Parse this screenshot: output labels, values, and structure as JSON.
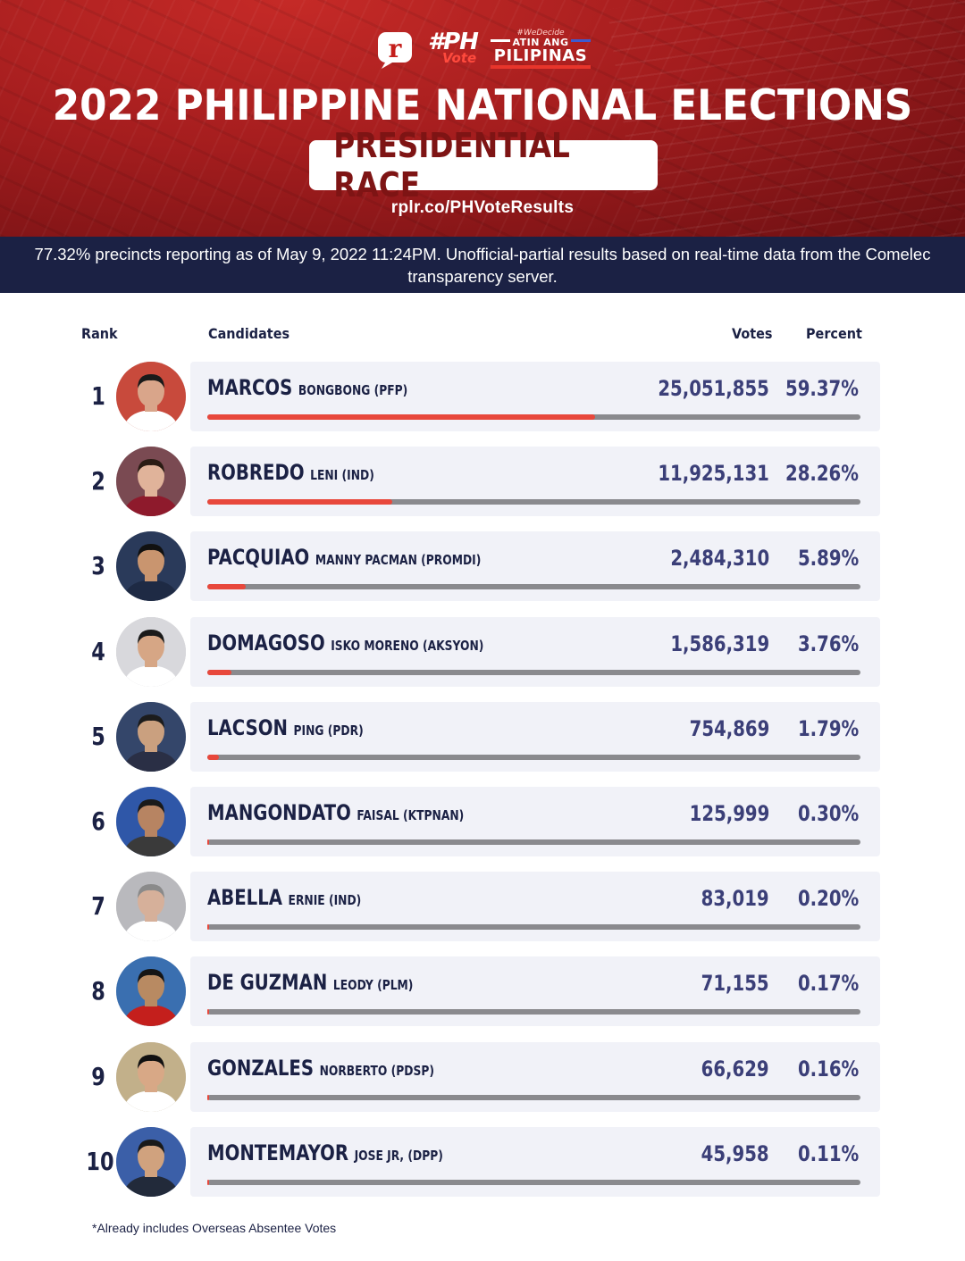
{
  "header": {
    "logo_hashtag": "#PH",
    "logo_vote": "Vote",
    "logo_wedecide": "#WeDecide",
    "logo_atin": "ATIN ANG",
    "logo_pilipinas": "PILIPINAS",
    "title": "2022 PHILIPPINE NATIONAL ELECTIONS",
    "subtitle": "PRESIDENTIAL RACE",
    "url": "rplr.co/PHVoteResults",
    "notice": "77.32% precincts reporting as of May 9, 2022 11:24PM. Unofficial-partial results based on real-time data from the Comelec transparency server."
  },
  "colors": {
    "header_red": "#a41d1e",
    "navy": "#1b2144",
    "bar_fill": "#e8483c",
    "bar_track": "#8a8a8e",
    "value_text": "#3b3f78",
    "row_bg": "#f1f2f8"
  },
  "columns": {
    "rank": "Rank",
    "candidates": "Candidates",
    "votes": "Votes",
    "percent": "Percent"
  },
  "chart_data": {
    "type": "bar",
    "orientation": "horizontal",
    "title": "PRESIDENTIAL RACE",
    "categories": [
      "MARCOS",
      "ROBREDO",
      "PACQUIAO",
      "DOMAGOSO",
      "LACSON",
      "MANGONDATO",
      "ABELLA",
      "DE GUZMAN",
      "GONZALES",
      "MONTEMAYOR"
    ],
    "xlim": [
      0,
      100
    ],
    "rows": [
      {
        "rank": "1",
        "last": "MARCOS",
        "rest": "BONGBONG (PFP)",
        "votes": "25,051,855",
        "percent_label": "59.37%",
        "percent": 59.37
      },
      {
        "rank": "2",
        "last": "ROBREDO",
        "rest": "LENI (IND)",
        "votes": "11,925,131",
        "percent_label": "28.26%",
        "percent": 28.26
      },
      {
        "rank": "3",
        "last": "PACQUIAO",
        "rest": "MANNY PACMAN (PROMDI)",
        "votes": "2,484,310",
        "percent_label": "5.89%",
        "percent": 5.89
      },
      {
        "rank": "4",
        "last": "DOMAGOSO",
        "rest": "ISKO MORENO (AKSYON)",
        "votes": "1,586,319",
        "percent_label": "3.76%",
        "percent": 3.76
      },
      {
        "rank": "5",
        "last": "LACSON",
        "rest": "PING (PDR)",
        "votes": "754,869",
        "percent_label": "1.79%",
        "percent": 1.79
      },
      {
        "rank": "6",
        "last": "MANGONDATO",
        "rest": "FAISAL (KTPNAN)",
        "votes": "125,999",
        "percent_label": "0.30%",
        "percent": 0.3
      },
      {
        "rank": "7",
        "last": "ABELLA",
        "rest": "ERNIE (IND)",
        "votes": "83,019",
        "percent_label": "0.20%",
        "percent": 0.2
      },
      {
        "rank": "8",
        "last": "DE GUZMAN",
        "rest": "LEODY (PLM)",
        "votes": "71,155",
        "percent_label": "0.17%",
        "percent": 0.17
      },
      {
        "rank": "9",
        "last": "GONZALES",
        "rest": "NORBERTO (PDSP)",
        "votes": "66,629",
        "percent_label": "0.16%",
        "percent": 0.16
      },
      {
        "rank": "10",
        "last": "MONTEMAYOR",
        "rest": "JOSE JR, (DPP)",
        "votes": "45,958",
        "percent_label": "0.11%",
        "percent": 0.11
      }
    ]
  },
  "footnote": "*Already includes Overseas Absentee Votes"
}
